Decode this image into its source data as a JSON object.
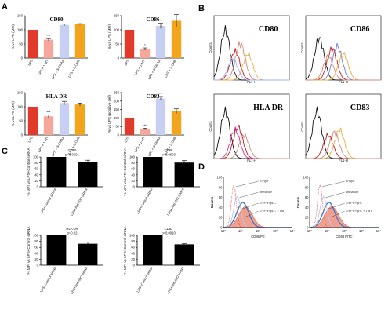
{
  "panel_labels": [
    "A",
    "B",
    "C",
    "D"
  ],
  "chart_data": [
    {
      "id": "A1",
      "type": "bar",
      "title": "CD80",
      "ylabel": "% vs LPS (MFI)",
      "ylim": [
        0,
        150
      ],
      "yticks": [
        0,
        50,
        100,
        150
      ],
      "categories": [
        "LPS",
        "LPS + 1-MT",
        "LPS + 3-OHAA",
        "LPS + 3-OHK"
      ],
      "values": [
        100,
        65,
        117,
        120
      ],
      "errors": [
        0,
        4,
        3,
        2
      ],
      "colors": [
        "#e23a2a",
        "#f4a79a",
        "#c7cff2",
        "#f2a51c"
      ],
      "annotations": [
        "",
        "***",
        "",
        ""
      ]
    },
    {
      "id": "A2",
      "type": "bar",
      "title": "CD86",
      "ylabel": "% vs LPS (MFI)",
      "ylim": [
        0,
        150
      ],
      "yticks": [
        0,
        50,
        100,
        150
      ],
      "categories": [
        "LPS",
        "LPS + 1-MT",
        "LPS + 3-OHAA",
        "LPS + 3-OHK"
      ],
      "values": [
        100,
        32,
        114,
        132
      ],
      "errors": [
        0,
        4,
        9,
        22
      ],
      "colors": [
        "#e23a2a",
        "#f4a79a",
        "#c7cff2",
        "#f2a51c"
      ],
      "annotations": [
        "",
        "*",
        "*",
        ""
      ]
    },
    {
      "id": "A3",
      "type": "bar",
      "title": "HLA DR",
      "ylabel": "% vs LPS (MFI)",
      "ylim": [
        0,
        150
      ],
      "yticks": [
        0,
        50,
        100,
        150
      ],
      "categories": [
        "LPS",
        "LPS + 1-MT",
        "LPS + 3-OHAA",
        "LPS + 3-OHK"
      ],
      "values": [
        100,
        66,
        113,
        108
      ],
      "errors": [
        0,
        5,
        6,
        5
      ],
      "colors": [
        "#e23a2a",
        "#f4a79a",
        "#c7cff2",
        "#f2a51c"
      ],
      "annotations": [
        "",
        "***",
        "",
        ""
      ]
    },
    {
      "id": "A4",
      "type": "bar",
      "title": "CD83",
      "ylabel": "% vs LPS (positive cell)",
      "ylim": [
        0,
        250
      ],
      "yticks": [
        0,
        50,
        100,
        150,
        200,
        250
      ],
      "categories": [
        "LPS",
        "LPS + 1-MT",
        "LPS + 3-OHAA",
        "LPS + 3-OHK"
      ],
      "values": [
        100,
        35,
        215,
        140
      ],
      "errors": [
        0,
        5,
        12,
        14
      ],
      "colors": [
        "#e23a2a",
        "#f4a79a",
        "#c7cff2",
        "#f2a51c"
      ],
      "annotations": [
        "",
        "**",
        "***",
        ""
      ]
    },
    {
      "id": "C1",
      "type": "bar",
      "title": "CD80",
      "subtitle": "p=0.0501",
      "ylabel": "% MFI vs LPS+Control siRNA",
      "ylim": [
        0,
        100
      ],
      "yticks": [
        0,
        20,
        40,
        60,
        80,
        100
      ],
      "categories": [
        "LPS+Control siRNA",
        "LPS+Anti-IDO siRNA"
      ],
      "values": [
        100,
        83
      ],
      "errors": [
        0,
        6
      ],
      "colors": [
        "#000000",
        "#000000"
      ]
    },
    {
      "id": "C2",
      "type": "bar",
      "title": "CD86",
      "subtitle": "p=0.0603",
      "ylabel": "% MFI vs LPS+Control siRNA",
      "ylim": [
        0,
        100
      ],
      "yticks": [
        0,
        20,
        40,
        60,
        80,
        100
      ],
      "categories": [
        "LPS+Control siRNA",
        "LPS+Anti-IDO siRNA"
      ],
      "values": [
        100,
        81
      ],
      "errors": [
        0,
        7
      ],
      "colors": [
        "#000000",
        "#000000"
      ]
    },
    {
      "id": "C3",
      "type": "bar",
      "title": "HLA DR",
      "subtitle": "p=0.02",
      "ylabel": "% MFI vs LPS+Control siRNA",
      "ylim": [
        0,
        100
      ],
      "yticks": [
        0,
        20,
        40,
        60,
        80,
        100
      ],
      "categories": [
        "LPS+Control siRNA",
        "LPS+Anti-IDO siRNA"
      ],
      "values": [
        100,
        72
      ],
      "errors": [
        0,
        6
      ],
      "colors": [
        "#000000",
        "#000000"
      ]
    },
    {
      "id": "C4",
      "type": "bar",
      "title": "CD83",
      "subtitle": "p=0.0010",
      "ylabel": "% MFI vs LPS+Control siRNA",
      "ylim": [
        0,
        100
      ],
      "yticks": [
        0,
        20,
        40,
        60,
        80,
        100
      ],
      "categories": [
        "LPS+Control siRNA",
        "LPS+Anti-IDO siRNA"
      ],
      "values": [
        100,
        70
      ],
      "errors": [
        0,
        2
      ],
      "colors": [
        "#000000",
        "#000000"
      ]
    }
  ],
  "histograms_B": [
    {
      "title": "CD80",
      "ylabel": "Counts",
      "xlabel": "FL1-H"
    },
    {
      "title": "CD86",
      "ylabel": "Counts",
      "xlabel": "FL1-H"
    },
    {
      "title": "HLA DR",
      "ylabel": "Counts",
      "xlabel": "FL1-H"
    },
    {
      "title": "CD83",
      "ylabel": "Counts",
      "xlabel": "FL1-H"
    }
  ],
  "histograms_D": [
    {
      "xlabel": "CD86 PE",
      "ylabel": "Counts",
      "yticks": [
        "0",
        "20",
        "40",
        "60",
        "80",
        "100"
      ],
      "xticks": [
        "10⁰",
        "10¹",
        "10²",
        "10³",
        "10⁴"
      ],
      "legend": [
        "Is-type",
        "Immature",
        "TNF-α+pI:C",
        "TNF-α+pI:C + 1MT"
      ]
    },
    {
      "xlabel": "CD83 FITC",
      "ylabel": "Counts",
      "yticks": [
        "0",
        "20",
        "40",
        "60",
        "80",
        "100"
      ],
      "xticks": [
        "10⁰",
        "10¹",
        "10²",
        "10³",
        "10⁴"
      ],
      "legend": [
        "Is-type",
        "Immature",
        "TNF-α+pI:C",
        "TNF-α+pI:C + 1MT"
      ]
    }
  ]
}
